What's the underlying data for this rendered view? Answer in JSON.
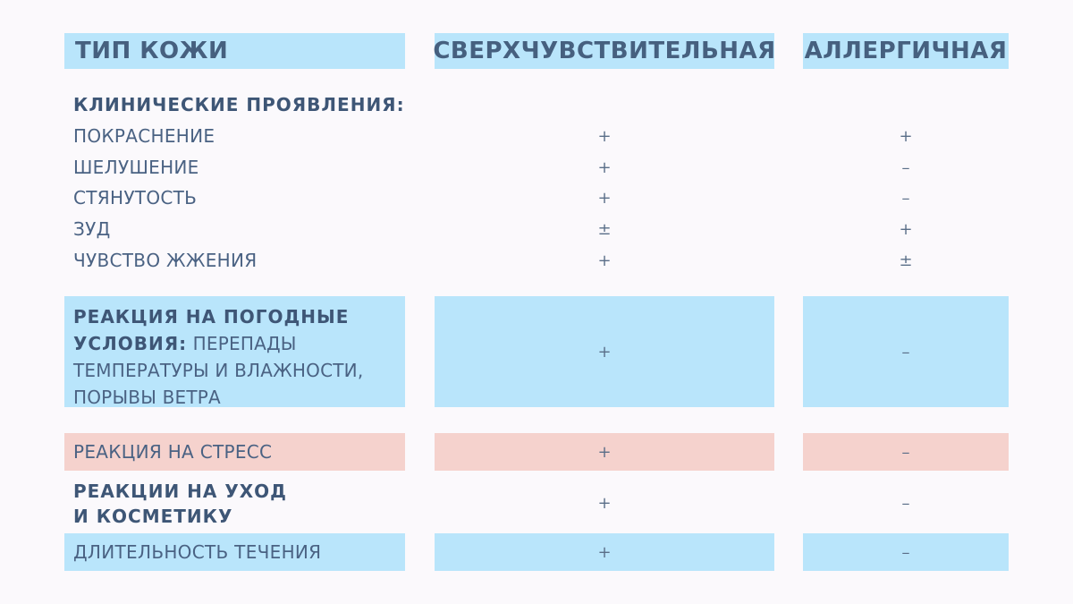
{
  "header": {
    "col0": "ТИП КОЖИ",
    "col1": "СВЕРХЧУВСТВИТЕЛЬНАЯ",
    "col2": "АЛЛЕРГИЧНАЯ"
  },
  "clinical": {
    "title": "КЛИНИЧЕСКИЕ ПРОЯВЛЕНИЯ:",
    "rows": [
      {
        "label": "ПОКРАСНЕНИЕ",
        "a": "+",
        "b": "+"
      },
      {
        "label": "ШЕЛУШЕНИЕ",
        "a": "+",
        "b": "–"
      },
      {
        "label": "СТЯНУТОСТЬ",
        "a": "+",
        "b": "–"
      },
      {
        "label": "ЗУД",
        "a": "±",
        "b": "+"
      },
      {
        "label": "ЧУВСТВО ЖЖЕНИЯ",
        "a": "+",
        "b": "±"
      }
    ]
  },
  "weather": {
    "title": "РЕАКЦИЯ НА ПОГОДНЫЕ УСЛОВИЯ:",
    "desc": " ПЕРЕПАДЫ ТЕМПЕРАТУРЫ И ВЛАЖНОСТИ, ПОРЫВЫ ВЕТРА",
    "a": "+",
    "b": "–"
  },
  "stress": {
    "label": "РЕАКЦИЯ НА СТРЕСС",
    "a": "+",
    "b": "–"
  },
  "care": {
    "label_line1": "РЕАКЦИИ НА УХОД",
    "label_line2": "И КОСМЕТИКУ",
    "a": "+",
    "b": "–"
  },
  "duration": {
    "label": "ДЛИТЕЛЬНОСТЬ ТЕЧЕНИЯ",
    "a": "+",
    "b": "–"
  },
  "colors": {
    "blue": "#b9e5fb",
    "pink": "#f5d2cd",
    "text": "#4a6283",
    "background": "#fbf9fc"
  }
}
